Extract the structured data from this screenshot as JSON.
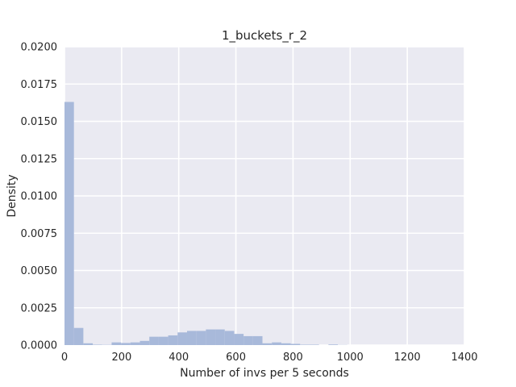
{
  "chart_data": {
    "type": "bar",
    "subtype": "histogram",
    "title": "1_buckets_r_2",
    "xlabel": "Number of invs per 5 seconds",
    "ylabel": "Density",
    "xlim": [
      0,
      1400
    ],
    "ylim": [
      0,
      0.02
    ],
    "x_ticks": [
      0,
      200,
      400,
      600,
      800,
      1000,
      1200,
      1400
    ],
    "x_tick_labels": [
      "0",
      "200",
      "400",
      "600",
      "800",
      "1000",
      "1200",
      "1400"
    ],
    "y_ticks": [
      0,
      0.0025,
      0.005,
      0.0075,
      0.01,
      0.0125,
      0.015,
      0.0175,
      0.02
    ],
    "y_tick_labels": [
      "0.0000",
      "0.0025",
      "0.0050",
      "0.0075",
      "0.0100",
      "0.0125",
      "0.0150",
      "0.0175",
      "0.0200"
    ],
    "grid": true,
    "bin_edges": [
      0,
      33,
      66,
      99,
      132,
      165,
      198,
      231,
      264,
      297,
      330,
      363,
      396,
      429,
      462,
      495,
      528,
      561,
      594,
      627,
      660,
      693,
      726,
      759,
      792,
      825,
      858,
      891,
      924,
      957,
      990
    ],
    "values": [
      0.0163,
      0.00115,
      0.00012,
      3e-05,
      2e-05,
      0.00018,
      0.00014,
      0.00018,
      0.00028,
      0.00056,
      0.00056,
      0.00065,
      0.00085,
      0.00095,
      0.00095,
      0.00105,
      0.00105,
      0.00095,
      0.00075,
      0.0006,
      0.0006,
      0.00012,
      0.00018,
      0.00012,
      8e-05,
      3e-05,
      3e-05,
      0.0,
      4e-05,
      1e-05
    ],
    "colors": {
      "bar": "#a8b9da",
      "background": "#eaeaf2",
      "grid": "#ffffff",
      "text": "#262626"
    }
  }
}
